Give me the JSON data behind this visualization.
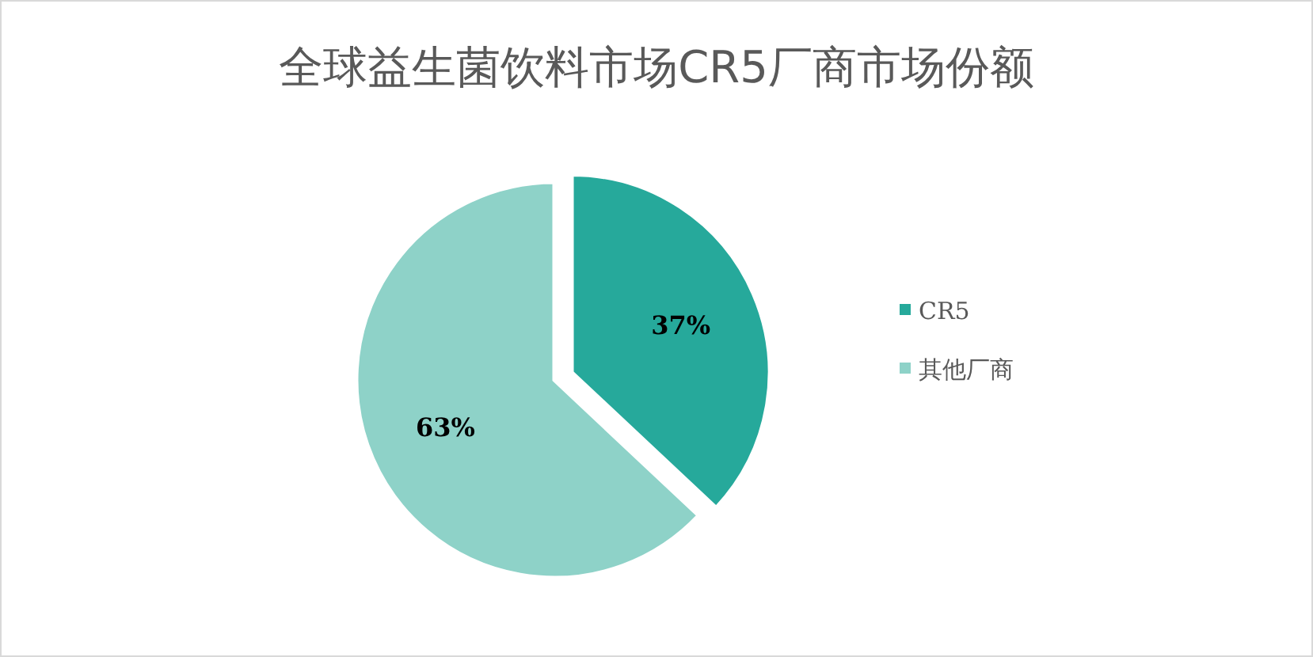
{
  "chart_data": {
    "type": "pie",
    "title": "全球益生菌饮料市场CR5厂商市场份额",
    "categories": [
      "CR5",
      "其他厂商"
    ],
    "values": [
      37,
      63
    ],
    "colors": [
      "#26a99b",
      "#8ed2c8"
    ],
    "value_labels": [
      "37%",
      "63%"
    ],
    "legend": "right"
  }
}
